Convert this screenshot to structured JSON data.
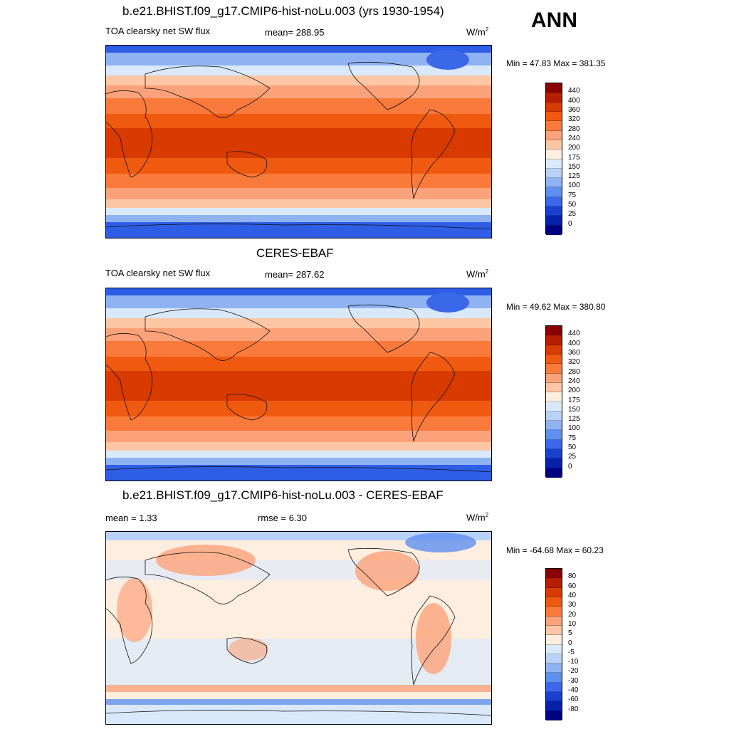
{
  "season": "ANN",
  "panels": [
    {
      "title": "b.e21.BHIST.f09_g17.CMIP6-hist-noLu.003 (yrs 1930-1954)",
      "left_label": "TOA clearsky net SW flux",
      "center_label": "mean= 288.95",
      "units": "W/m",
      "units_sup": "2",
      "minmax": "Min =  47.83 Max = 381.35",
      "kind": "abs"
    },
    {
      "title": "CERES-EBAF",
      "left_label": "TOA clearsky net SW flux",
      "center_label": "mean= 287.62",
      "units": "W/m",
      "units_sup": "2",
      "minmax": "Min =  49.62 Max = 380.80",
      "kind": "abs"
    },
    {
      "title": "b.e21.BHIST.f09_g17.CMIP6-hist-noLu.003 - CERES-EBAF",
      "left_label": "mean =   1.33",
      "center_label": "rmse =   6.30",
      "units": "W/m",
      "units_sup": "2",
      "minmax": "Min = -64.68 Max =  60.23",
      "kind": "diff"
    }
  ],
  "colorbars": {
    "abs": {
      "labels": [
        "440",
        "400",
        "360",
        "320",
        "280",
        "240",
        "200",
        "175",
        "150",
        "125",
        "100",
        "75",
        "50",
        "25",
        "0"
      ],
      "colors": [
        "#8b0000",
        "#b51f00",
        "#d93a00",
        "#f05a10",
        "#fa7a3c",
        "#fca27a",
        "#fdc6a4",
        "#fdeee0",
        "#d9e9fb",
        "#b9d2f7",
        "#8fb2f2",
        "#5f8ff0",
        "#3b68e8",
        "#1a40d0",
        "#0522a8",
        "#000080"
      ]
    },
    "diff": {
      "labels": [
        "80",
        "60",
        "40",
        "30",
        "20",
        "10",
        "5",
        "0",
        "-5",
        "-10",
        "-20",
        "-30",
        "-40",
        "-60",
        "-80"
      ],
      "colors": [
        "#8b0000",
        "#b51f00",
        "#d93a00",
        "#f05a10",
        "#fa7a3c",
        "#fca27a",
        "#fdc6a4",
        "#fdeee0",
        "#d9e9fb",
        "#b9d2f7",
        "#8fb2f2",
        "#5f8ff0",
        "#3b68e8",
        "#1a40d0",
        "#0522a8",
        "#000080"
      ]
    }
  }
}
